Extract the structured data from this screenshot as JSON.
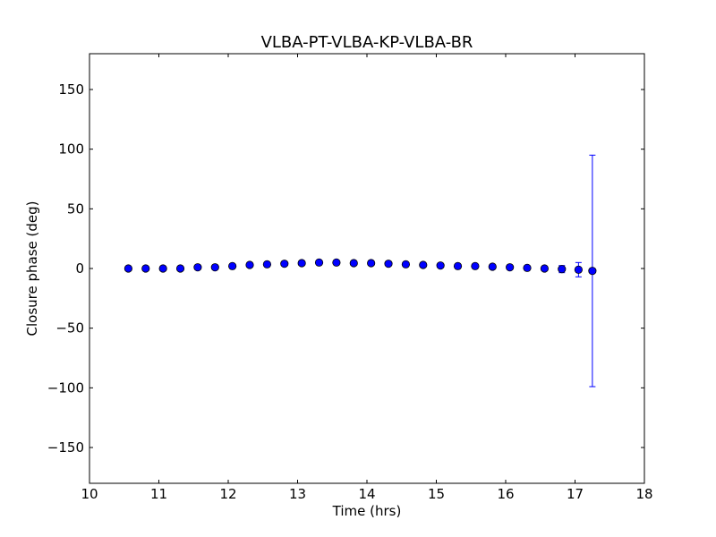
{
  "chart_data": {
    "type": "scatter",
    "title": "VLBA-PT-VLBA-KP-VLBA-BR",
    "xlabel": "Time (hrs)",
    "ylabel": "Closure phase (deg)",
    "xlim": [
      10,
      18
    ],
    "ylim": [
      -180,
      180
    ],
    "xticks": [
      10,
      11,
      12,
      13,
      14,
      15,
      16,
      17,
      18
    ],
    "xtick_labels": [
      "10",
      "11",
      "12",
      "13",
      "14",
      "15",
      "16",
      "17",
      "18"
    ],
    "yticks": [
      -150,
      -100,
      -50,
      0,
      50,
      100,
      150
    ],
    "ytick_labels": [
      "−150",
      "−100",
      "−50",
      "0",
      "50",
      "100",
      "150"
    ],
    "grid": false,
    "marker": "circle",
    "colors": {
      "marker_fill": "#0000ff",
      "marker_edge": "#000000",
      "errorbar": "#0000ff",
      "axes": "#000000"
    },
    "x": [
      10.56,
      10.81,
      11.06,
      11.31,
      11.56,
      11.81,
      12.06,
      12.31,
      12.56,
      12.81,
      13.06,
      13.31,
      13.56,
      13.81,
      14.06,
      14.31,
      14.56,
      14.81,
      15.06,
      15.31,
      15.56,
      15.81,
      16.06,
      16.31,
      16.56,
      16.81,
      17.05,
      17.25
    ],
    "y": [
      0,
      0,
      0,
      0,
      1,
      1,
      2,
      3,
      3.5,
      4,
      4.5,
      5,
      5,
      4.5,
      4.5,
      4,
      3.5,
      3,
      2.5,
      2,
      2,
      1.5,
      1,
      0.5,
      0,
      -0.5,
      -1,
      -2
    ],
    "yerr": [
      1,
      1,
      1,
      1,
      1,
      1,
      1,
      1,
      1,
      1,
      1,
      1,
      1,
      1,
      1,
      1,
      1,
      1,
      1,
      1,
      1,
      1,
      1,
      1,
      1,
      3,
      6,
      97
    ]
  }
}
